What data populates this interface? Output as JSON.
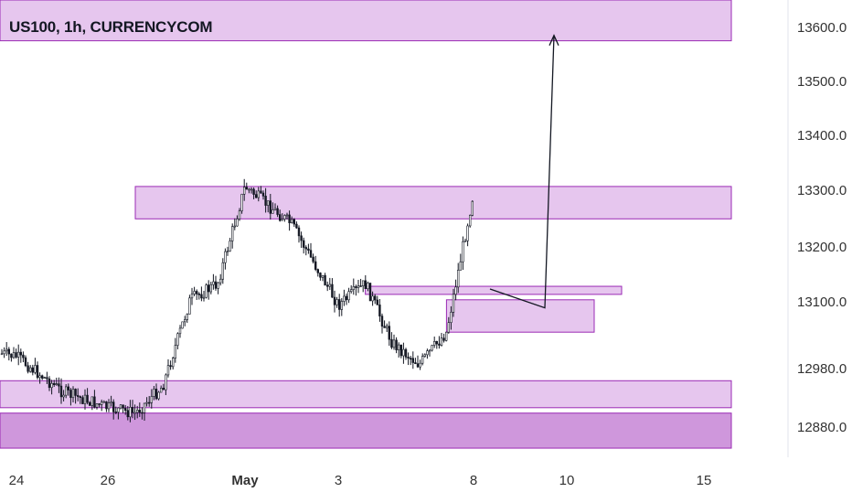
{
  "header": {
    "title": "US100, 1h, CURRENCYCOM"
  },
  "colors": {
    "zone_fill": "#e6c6ee",
    "zone_fill_dark": "#cf97dc",
    "zone_stroke": "#9b2bb5",
    "candle": "#131722",
    "arrow": "#131722",
    "axis_text": "#333333"
  },
  "chart_data": {
    "type": "candlestick",
    "symbol": "US100",
    "timeframe": "1h",
    "source": "CURRENCYCOM",
    "y_axis": {
      "side": "right",
      "ticks": [
        "13600.0",
        "13500.0",
        "13400.0",
        "13300.0",
        "13200.0",
        "13100.0",
        "12980.0",
        "12880.0"
      ],
      "range": [
        12800,
        13640
      ]
    },
    "x_axis": {
      "ticks": [
        {
          "label": "24",
          "bold": false
        },
        {
          "label": "26",
          "bold": false
        },
        {
          "label": "May",
          "bold": true
        },
        {
          "label": "3",
          "bold": false
        },
        {
          "label": "8",
          "bold": false
        },
        {
          "label": "10",
          "bold": false
        },
        {
          "label": "15",
          "bold": false
        }
      ]
    },
    "price_path": [
      {
        "date": "Apr 23",
        "price": 12990
      },
      {
        "date": "Apr 24",
        "price": 12975
      },
      {
        "date": "Apr 25",
        "price": 12910
      },
      {
        "date": "Apr 26",
        "price": 12880
      },
      {
        "date": "Apr 27",
        "price": 12870
      },
      {
        "date": "Apr 28",
        "price": 12920
      },
      {
        "date": "Apr 29",
        "price": 13080
      },
      {
        "date": "Apr 30",
        "price": 13110
      },
      {
        "date": "May 1",
        "price": 13290
      },
      {
        "date": "May 2",
        "price": 13220
      },
      {
        "date": "May 3",
        "price": 13070
      },
      {
        "date": "May 4",
        "price": 13110
      },
      {
        "date": "May 5",
        "price": 13000
      },
      {
        "date": "May 6",
        "price": 12960
      },
      {
        "date": "May 7",
        "price": 13020
      },
      {
        "date": "May 8",
        "price": 13280
      }
    ],
    "zones": [
      {
        "name": "top-resistance",
        "price_low": 13560,
        "price_high": 13640,
        "date_from": "Apr 23",
        "date_to": "May 16"
      },
      {
        "name": "upper-resistance",
        "price_low": 13230,
        "price_high": 13290,
        "date_from": "Apr 27",
        "date_to": "May 16"
      },
      {
        "name": "demand-thin",
        "price_low": 13090,
        "price_high": 13105,
        "date_from": "May 4",
        "date_to": "May 12"
      },
      {
        "name": "demand-box",
        "price_low": 13020,
        "price_high": 13080,
        "date_from": "May 7",
        "date_to": "May 11"
      },
      {
        "name": "lower-support",
        "price_low": 12880,
        "price_high": 12930,
        "date_from": "Apr 23",
        "date_to": "May 16"
      },
      {
        "name": "bottom-support",
        "price_low": 12805,
        "price_high": 12870,
        "date_from": "Apr 23",
        "date_to": "May 16"
      }
    ],
    "projection": [
      {
        "date": "May 8",
        "price": 13100
      },
      {
        "date": "May 9",
        "price": 13065
      },
      {
        "date": "May 9",
        "price": 13570
      }
    ]
  }
}
